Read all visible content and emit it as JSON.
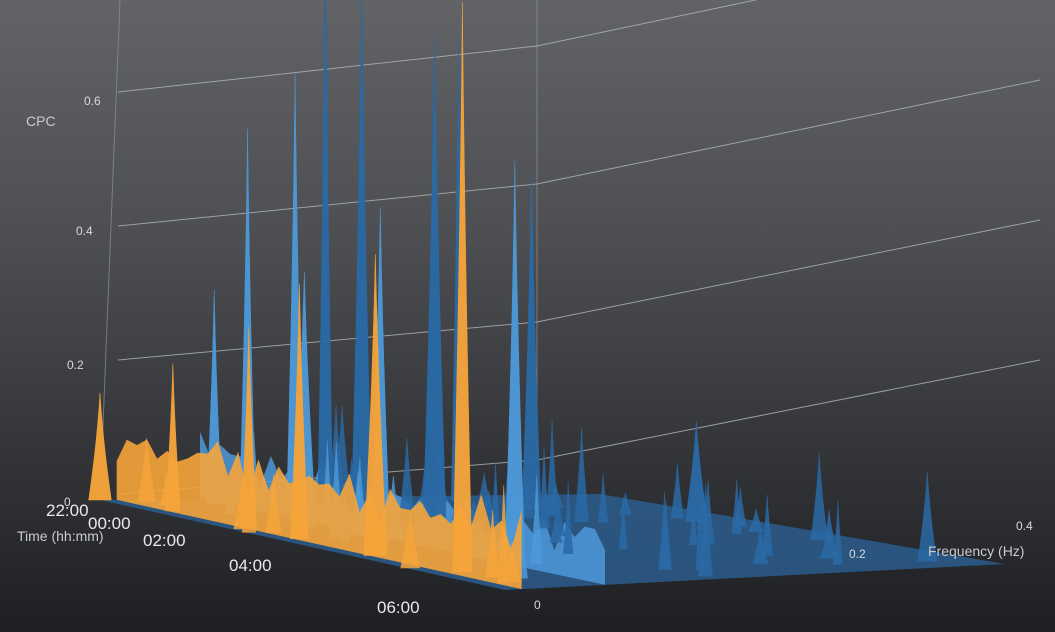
{
  "chart_data": {
    "type": "3d-surface",
    "title": "",
    "zlabel": "CPC",
    "xlabel": "Frequency (Hz)",
    "ylabel": "Time (hh:mm)",
    "z_ticks": [
      "0",
      "0.2",
      "0.4",
      "0.6"
    ],
    "x_ticks": [
      "0",
      "0.2",
      "0.4"
    ],
    "y_ticks": [
      "22:00",
      "00:00",
      "02:00",
      "04:00",
      "06:00"
    ],
    "zlim": [
      0,
      0.75
    ],
    "xlim": [
      0,
      0.45
    ],
    "colors": {
      "low_band": "#f5a43a",
      "mid_band": "#4d99d9",
      "high_band": "#2a6aa6"
    },
    "band_split_hz": [
      0.04,
      0.15
    ],
    "notable_peaks": [
      {
        "frequency": 0.0,
        "time": "22:00",
        "cpc": 0.16
      },
      {
        "frequency": 0.02,
        "time": "23:00",
        "cpc": 0.22
      },
      {
        "frequency": 0.02,
        "time": "00:30",
        "cpc": 0.3
      },
      {
        "frequency": 0.02,
        "time": "01:30",
        "cpc": 0.38
      },
      {
        "frequency": 0.02,
        "time": "03:00",
        "cpc": 0.45
      },
      {
        "frequency": 0.03,
        "time": "04:30",
        "cpc": 0.85
      },
      {
        "frequency": 0.08,
        "time": "22:30",
        "cpc": 0.32
      },
      {
        "frequency": 0.07,
        "time": "00:30",
        "cpc": 0.38
      },
      {
        "frequency": 0.07,
        "time": "02:00",
        "cpc": 0.5
      },
      {
        "frequency": 0.1,
        "time": "04:00",
        "cpc": 0.6
      },
      {
        "frequency": 0.11,
        "time": "22:30",
        "cpc": 0.56
      },
      {
        "frequency": 0.13,
        "time": "23:00",
        "cpc": 0.65
      },
      {
        "frequency": 0.18,
        "time": "22:30",
        "cpc": 0.86
      },
      {
        "frequency": 0.19,
        "time": "23:00",
        "cpc": 0.78
      },
      {
        "frequency": 0.21,
        "time": "00:00",
        "cpc": 0.72
      },
      {
        "frequency": 0.3,
        "time": "22:30",
        "cpc": 0.7
      },
      {
        "frequency": 0.32,
        "time": "23:30",
        "cpc": 0.5
      },
      {
        "frequency": 0.4,
        "time": "01:00",
        "cpc": 0.15
      }
    ]
  }
}
